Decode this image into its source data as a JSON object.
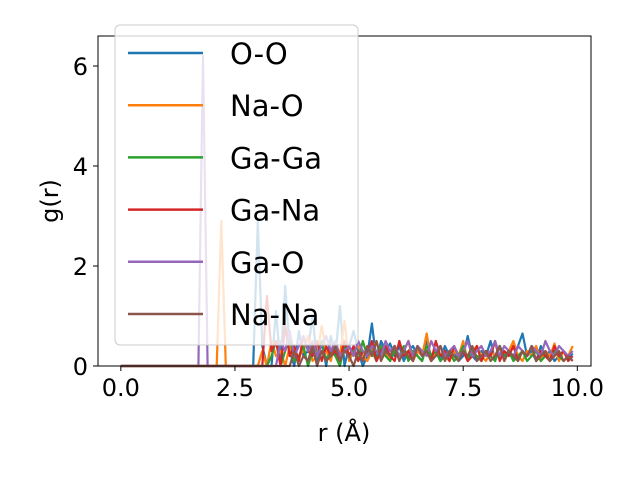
{
  "chart_data": {
    "type": "line",
    "xlabel": "r (Å)",
    "ylabel": "g(r)",
    "xlim": [
      -0.5,
      10.3
    ],
    "ylim": [
      0,
      6.6
    ],
    "xticks": [
      0.0,
      2.5,
      5.0,
      7.5,
      10.0
    ],
    "xtick_labels": [
      "0.0",
      "2.5",
      "5.0",
      "7.5",
      "10.0"
    ],
    "yticks": [
      0,
      2,
      4,
      6
    ],
    "ytick_labels": [
      "0",
      "2",
      "4",
      "6"
    ],
    "grid": false,
    "legend_position": "top-left",
    "x": [
      0.0,
      0.1,
      0.2,
      0.3,
      0.4,
      0.5,
      0.6,
      0.7,
      0.8,
      0.9,
      1.0,
      1.1,
      1.2,
      1.3,
      1.4,
      1.5,
      1.6,
      1.7,
      1.8,
      1.9,
      2.0,
      2.1,
      2.2,
      2.3,
      2.4,
      2.5,
      2.6,
      2.7,
      2.8,
      2.9,
      3.0,
      3.1,
      3.2,
      3.3,
      3.4,
      3.5,
      3.6,
      3.7,
      3.8,
      3.9,
      4.0,
      4.1,
      4.2,
      4.3,
      4.4,
      4.5,
      4.6,
      4.7,
      4.8,
      4.9,
      5.0,
      5.1,
      5.2,
      5.3,
      5.4,
      5.5,
      5.6,
      5.7,
      5.8,
      5.9,
      6.0,
      6.1,
      6.2,
      6.3,
      6.4,
      6.5,
      6.6,
      6.7,
      6.8,
      6.9,
      7.0,
      7.1,
      7.2,
      7.3,
      7.4,
      7.5,
      7.6,
      7.7,
      7.8,
      7.9,
      8.0,
      8.1,
      8.2,
      8.3,
      8.4,
      8.5,
      8.6,
      8.7,
      8.8,
      8.9,
      9.0,
      9.1,
      9.2,
      9.3,
      9.4,
      9.5,
      9.6,
      9.7,
      9.8,
      9.9
    ],
    "series": [
      {
        "name": "O-O",
        "color": "#1f77b4",
        "values": [
          0,
          0,
          0,
          0,
          0,
          0,
          0,
          0,
          0,
          0,
          0,
          0,
          0,
          0,
          0,
          0,
          0,
          0,
          0,
          0,
          0,
          0,
          0,
          0,
          0,
          0,
          0,
          0,
          0,
          0,
          2.9,
          0.4,
          0,
          0,
          1.1,
          0,
          1.6,
          0.3,
          0,
          0.7,
          0.2,
          0.3,
          1.0,
          0.1,
          0.5,
          0,
          0.6,
          0.2,
          1.2,
          0,
          0.4,
          0.7,
          0.3,
          0,
          0.2,
          0.85,
          0.1,
          0.5,
          0.3,
          0.45,
          0.2,
          0.4,
          0.1,
          0.3,
          0.4,
          0.2,
          0.1,
          0.5,
          0.2,
          0.3,
          0.1,
          0.4,
          0.2,
          0.3,
          0.1,
          0.2,
          0.6,
          0.2,
          0.1,
          0.3,
          0.2,
          0.5,
          0.1,
          0.4,
          0.2,
          0.3,
          0.15,
          0.4,
          0.65,
          0.2,
          0.3,
          0.1,
          0.4,
          0.2,
          0.3,
          0.1,
          0.2,
          0.3,
          0.15,
          0.25
        ]
      },
      {
        "name": "Na-O",
        "color": "#ff7f0e",
        "values": [
          0,
          0,
          0,
          0,
          0,
          0,
          0,
          0,
          0,
          0,
          0,
          0,
          0,
          0,
          0,
          0,
          0,
          0,
          0,
          0,
          0,
          0,
          2.9,
          0,
          0,
          0,
          0,
          0,
          0,
          0,
          0,
          0.3,
          0,
          0.5,
          0.2,
          0.3,
          0,
          0.4,
          0.1,
          0.2,
          0.3,
          0.6,
          0.1,
          0.2,
          0.8,
          0.3,
          0.1,
          0.5,
          0.2,
          0.9,
          0.1,
          0.3,
          0.4,
          0.2,
          0.1,
          0.3,
          0.5,
          0.2,
          0.3,
          0.1,
          0.4,
          0.2,
          0.3,
          0.5,
          0.1,
          0.3,
          0.2,
          0.65,
          0.1,
          0.3,
          0.4,
          0.2,
          0.1,
          0.3,
          0.2,
          0.5,
          0.1,
          0.3,
          0.4,
          0.2,
          0.1,
          0.3,
          0.2,
          0.4,
          0.1,
          0.3,
          0.5,
          0.2,
          0.1,
          0.3,
          0.2,
          0.4,
          0.1,
          0.3,
          0.2,
          0.45,
          0.1,
          0.3,
          0.2,
          0.4
        ]
      },
      {
        "name": "Ga-Ga",
        "color": "#2ca02c",
        "values": [
          0,
          0,
          0,
          0,
          0,
          0,
          0,
          0,
          0,
          0,
          0,
          0,
          0,
          0,
          0,
          0,
          0,
          0,
          0,
          0,
          0,
          0,
          0,
          0,
          0,
          0,
          0,
          0,
          0,
          0,
          0,
          0,
          0,
          0.2,
          0.5,
          0,
          0.3,
          0.6,
          0.1,
          0.2,
          0.4,
          0,
          0.3,
          0.2,
          0.5,
          0.1,
          0.3,
          0.2,
          0,
          0.4,
          0.2,
          0.3,
          0.1,
          0.5,
          0.2,
          0.3,
          0.1,
          0.4,
          0.2,
          0.1,
          0.3,
          0.2,
          0.4,
          0.1,
          0.3,
          0.2,
          0.1,
          0.4,
          0.2,
          0.3,
          0.1,
          0.2,
          0.3,
          0.1,
          0.2,
          0.4,
          0.1,
          0.3,
          0.2,
          0.1,
          0.3,
          0.2,
          0.1,
          0.4,
          0.2,
          0.3,
          0.1,
          0.2,
          0.3,
          0.1,
          0.2,
          0.3,
          0.1,
          0.2,
          0.1,
          0.3,
          0.2,
          0.1,
          0.2,
          0.1
        ]
      },
      {
        "name": "Ga-Na",
        "color": "#d62728",
        "values": [
          0,
          0,
          0,
          0,
          0,
          0,
          0,
          0,
          0,
          0,
          0,
          0,
          0,
          0,
          0,
          0,
          0,
          0,
          0,
          0,
          0,
          0,
          0,
          0,
          0,
          0,
          0,
          0,
          0,
          0,
          0,
          0,
          1.4,
          0.3,
          0.5,
          0,
          0.8,
          0.2,
          0.4,
          0.1,
          0.6,
          0.3,
          0.2,
          0.5,
          0.1,
          0.4,
          0.2,
          0.3,
          0.1,
          0.5,
          0.2,
          0.4,
          0.1,
          0.3,
          0.2,
          0.5,
          0.1,
          0.3,
          0.4,
          0.2,
          0.1,
          0.5,
          0.2,
          0.3,
          0.1,
          0.4,
          0.2,
          0.3,
          0.1,
          0.5,
          0.2,
          0.3,
          0.1,
          0.4,
          0.2,
          0.3,
          0.1,
          0.2,
          0.4,
          0.1,
          0.3,
          0.2,
          0.5,
          0.1,
          0.3,
          0.2,
          0.4,
          0.1,
          0.3,
          0.2,
          0.4,
          0.1,
          0.3,
          0.2,
          0.1,
          0.4,
          0.2,
          0.3,
          0.1,
          0.2
        ]
      },
      {
        "name": "Ga-O",
        "color": "#9467bd",
        "values": [
          0,
          0,
          0,
          0,
          0,
          0,
          0,
          0,
          0,
          0,
          0,
          0,
          0,
          0,
          0,
          0,
          0,
          0,
          6.2,
          0,
          0,
          0,
          0,
          0,
          0,
          0,
          0,
          0,
          0,
          0,
          0,
          0,
          0,
          0,
          0,
          0.5,
          0.3,
          0.7,
          0.2,
          0.4,
          0.6,
          0.3,
          0.5,
          0.2,
          0.4,
          0.6,
          0.3,
          0.5,
          0.2,
          0.3,
          0.4,
          0.2,
          0.5,
          0.3,
          0.2,
          0.4,
          0.3,
          0.2,
          0.5,
          0.3,
          0.4,
          0.2,
          0.3,
          0.5,
          0.2,
          0.4,
          0.3,
          0.2,
          0.5,
          0.3,
          0.4,
          0.2,
          0.3,
          0.4,
          0.2,
          0.3,
          0.5,
          0.2,
          0.3,
          0.4,
          0.2,
          0.3,
          0.5,
          0.2,
          0.4,
          0.3,
          0.2,
          0.4,
          0.3,
          0.2,
          0.4,
          0.3,
          0.2,
          0.5,
          0.3,
          0.2,
          0.4,
          0.3,
          0.2,
          0.3
        ]
      },
      {
        "name": "Na-Na",
        "color": "#8c564b",
        "values": [
          0,
          0,
          0,
          0,
          0,
          0,
          0,
          0,
          0,
          0,
          0,
          0,
          0,
          0,
          0,
          0,
          0,
          0,
          0,
          0,
          0,
          0,
          0,
          0,
          0,
          0,
          0,
          0,
          0,
          0,
          0,
          0,
          0,
          0,
          0,
          0,
          0,
          0,
          0.3,
          0,
          0.2,
          0.1,
          0.4,
          0,
          0.3,
          0.1,
          0.2,
          0.4,
          0.1,
          0.3,
          0.2,
          0,
          0.3,
          0.1,
          0.4,
          0.2,
          0.5,
          0.1,
          0.3,
          0.2,
          0.4,
          0.1,
          0.3,
          0.2,
          0.1,
          0.4,
          0.2,
          0.3,
          0.1,
          0.2,
          0.4,
          0.1,
          0.3,
          0.2,
          0.1,
          0.3,
          0.2,
          0.4,
          0.1,
          0.2,
          0.3,
          0.1,
          0.2,
          0.4,
          0.1,
          0.3,
          0.2,
          0.1,
          0.3,
          0.2,
          0.4,
          0.1,
          0.2,
          0.3,
          0.1,
          0.2,
          0.3,
          0.1,
          0.2,
          0.1
        ]
      }
    ]
  }
}
